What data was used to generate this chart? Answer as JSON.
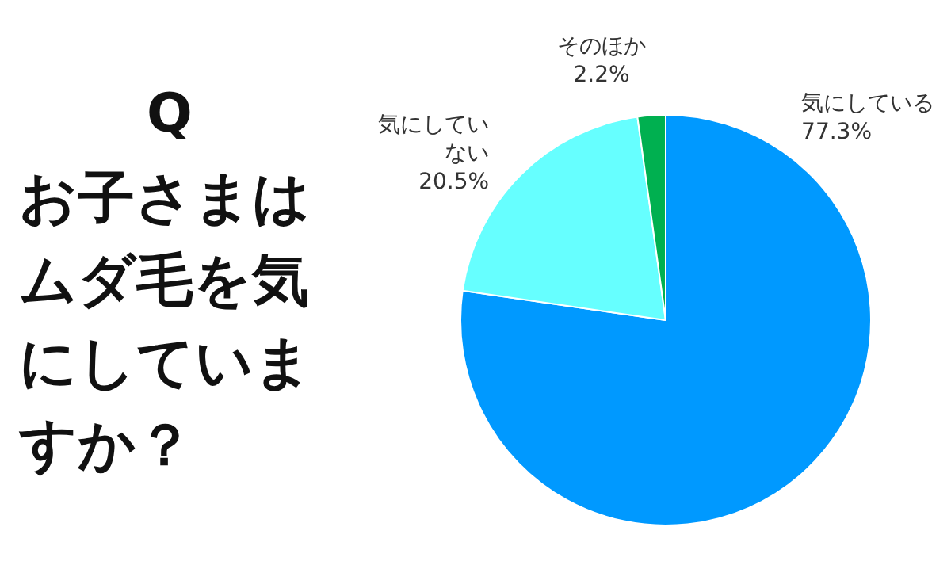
{
  "chart_data": {
    "type": "pie",
    "title": "Q",
    "subtitle": "お子さまはムダ毛を気にしていますか？",
    "categories": [
      "気にしている",
      "気にしていない",
      "そのほか"
    ],
    "values": [
      77.3,
      20.5,
      2.2
    ],
    "colors": [
      "#0099ff",
      "#66ffff",
      "#00b050"
    ],
    "value_labels": [
      "77.3%",
      "20.5%",
      "2.2%"
    ],
    "legend": false
  }
}
